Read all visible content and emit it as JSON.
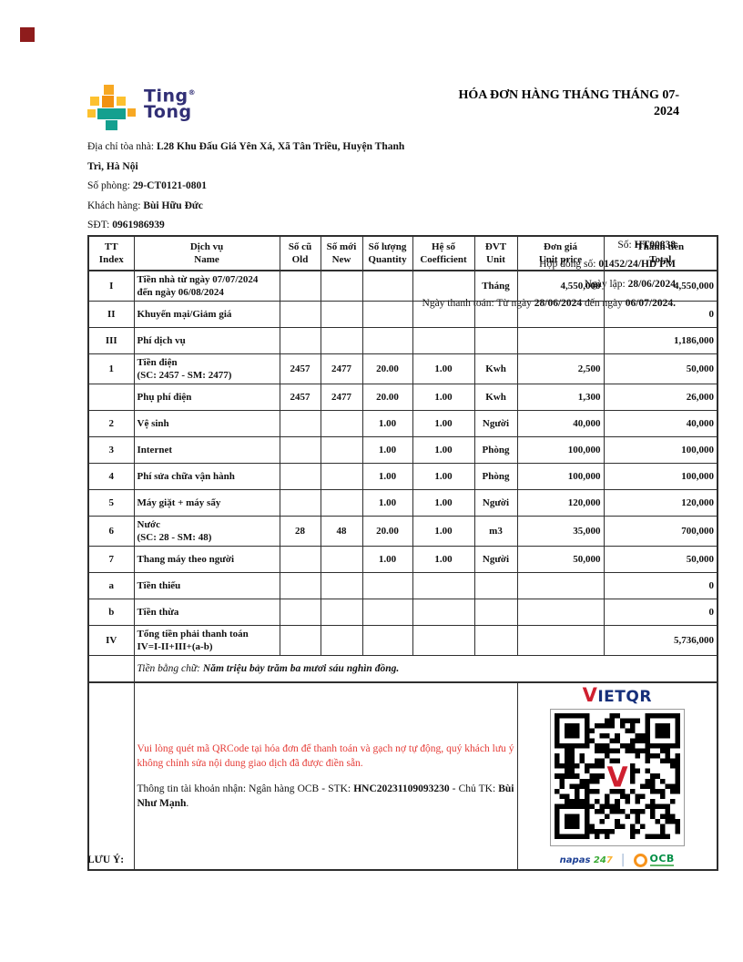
{
  "title": "HÓA ĐƠN HÀNG THÁNG THÁNG 07-2024",
  "logo": {
    "line1": "Ting",
    "line2": "Tong",
    "reg_mark": "®"
  },
  "colors": {
    "corner_mark": "#8e1c1c",
    "brand_navy": "#312f75",
    "brand_teal": "#14a08f",
    "brand_gold": "#f7a823",
    "note_red": "#e53b36",
    "vietqr_red": "#cf2030",
    "vietqr_navy": "#152f7a",
    "napas_navy": "#1c3f94",
    "napas_green": "#3aaa35",
    "napas_yellow": "#f9b233",
    "ocb_green": "#008f45",
    "ocb_orange": "#f7941d"
  },
  "info_left": [
    [
      {
        "t": "Địa chỉ tòa nhà: "
      },
      {
        "t": "L28 Khu Đấu Giá Yên Xá, Xã Tân Triều, Huyện Thanh Trì, Hà Nội",
        "b": true
      }
    ],
    [
      {
        "t": "Số phòng: "
      },
      {
        "t": "29-CT0121-0801",
        "b": true
      }
    ],
    [
      {
        "t": "Khách hàng: "
      },
      {
        "t": "Bùi Hữu Đức",
        "b": true
      }
    ],
    [
      {
        "t": "SĐT: "
      },
      {
        "t": "0961986939",
        "b": true
      }
    ]
  ],
  "info_right": [
    [
      {
        "t": "Số: "
      },
      {
        "t": "HT00838",
        "b": true
      }
    ],
    [
      {
        "t": "Hợp đồng số: "
      },
      {
        "t": "01452/24/HD PM",
        "b": true
      }
    ],
    [
      {
        "t": "Ngày lập: "
      },
      {
        "t": "28/06/2024",
        "b": true
      }
    ],
    [
      {
        "t": "Ngày thanh toán: Từ ngày "
      },
      {
        "t": "28/06/2024",
        "b": true
      },
      {
        "t": " đến ngày "
      },
      {
        "t": "06/07/2024.",
        "b": true
      }
    ]
  ],
  "table": {
    "header": [
      {
        "vi": "TT",
        "en": "Index"
      },
      {
        "vi": "Dịch vụ",
        "en": "Name"
      },
      {
        "vi": "Số cũ",
        "en": "Old"
      },
      {
        "vi": "Số mới",
        "en": "New"
      },
      {
        "vi": "Số lượng",
        "en": "Quantity"
      },
      {
        "vi": "Hệ số",
        "en": "Coefficient"
      },
      {
        "vi": "ĐVT",
        "en": "Unit"
      },
      {
        "vi": "Đơn giá",
        "en": "Unit price"
      },
      {
        "vi": "Thành tiền",
        "en": "Total"
      }
    ],
    "rows": [
      {
        "tt": "I",
        "name": "Tiền nhà từ ngày 07/07/2024",
        "sub": "đến ngày 06/08/2024",
        "old": "",
        "new": "",
        "qty": "",
        "coef": "",
        "unit": "Tháng",
        "price": "4,550,000",
        "total": "4,550,000"
      },
      {
        "tt": "II",
        "name": "Khuyến mại/Giảm giá",
        "sub": "",
        "old": "",
        "new": "",
        "qty": "",
        "coef": "",
        "unit": "",
        "price": "",
        "total": "0"
      },
      {
        "tt": "III",
        "name": "Phí dịch vụ",
        "sub": "",
        "old": "",
        "new": "",
        "qty": "",
        "coef": "",
        "unit": "",
        "price": "",
        "total": "1,186,000"
      },
      {
        "tt": "1",
        "name": "Tiền điện",
        "sub": "(SC: 2457 - SM: 2477)",
        "old": "2457",
        "new": "2477",
        "qty": "20.00",
        "coef": "1.00",
        "unit": "Kwh",
        "price": "2,500",
        "total": "50,000"
      },
      {
        "tt": "",
        "name": "Phụ phí điện",
        "sub": "",
        "old": "2457",
        "new": "2477",
        "qty": "20.00",
        "coef": "1.00",
        "unit": "Kwh",
        "price": "1,300",
        "total": "26,000"
      },
      {
        "tt": "2",
        "name": "Vệ sinh",
        "sub": "",
        "old": "",
        "new": "",
        "qty": "1.00",
        "coef": "1.00",
        "unit": "Người",
        "price": "40,000",
        "total": "40,000"
      },
      {
        "tt": "3",
        "name": "Internet",
        "sub": "",
        "old": "",
        "new": "",
        "qty": "1.00",
        "coef": "1.00",
        "unit": "Phòng",
        "price": "100,000",
        "total": "100,000"
      },
      {
        "tt": "4",
        "name": "Phí sửa chữa vận hành",
        "sub": "",
        "old": "",
        "new": "",
        "qty": "1.00",
        "coef": "1.00",
        "unit": "Phòng",
        "price": "100,000",
        "total": "100,000"
      },
      {
        "tt": "5",
        "name": "Máy giặt + máy sấy",
        "sub": "",
        "old": "",
        "new": "",
        "qty": "1.00",
        "coef": "1.00",
        "unit": "Người",
        "price": "120,000",
        "total": "120,000"
      },
      {
        "tt": "6",
        "name": "Nước",
        "sub": "(SC: 28 - SM: 48)",
        "old": "28",
        "new": "48",
        "qty": "20.00",
        "coef": "1.00",
        "unit": "m3",
        "price": "35,000",
        "total": "700,000"
      },
      {
        "tt": "7",
        "name": "Thang máy theo người",
        "sub": "",
        "old": "",
        "new": "",
        "qty": "1.00",
        "coef": "1.00",
        "unit": "Người",
        "price": "50,000",
        "total": "50,000"
      },
      {
        "tt": "a",
        "name": "Tiền thiếu",
        "sub": "",
        "old": "",
        "new": "",
        "qty": "",
        "coef": "",
        "unit": "",
        "price": "",
        "total": "0"
      },
      {
        "tt": "b",
        "name": "Tiền thừa",
        "sub": "",
        "old": "",
        "new": "",
        "qty": "",
        "coef": "",
        "unit": "",
        "price": "",
        "total": "0"
      },
      {
        "tt": "IV",
        "name": "Tổng tiền phải thanh toán",
        "sub": "IV=I-II+III+(a-b)",
        "old": "",
        "new": "",
        "qty": "",
        "coef": "",
        "unit": "",
        "price": "",
        "total": "5,736,000"
      }
    ],
    "amount_in_words": [
      {
        "t": "Tiền bằng chữ: ",
        "i": true
      },
      {
        "t": "Năm triệu bảy trăm ba mươi sáu nghìn đồng.",
        "b": true,
        "i": true
      }
    ]
  },
  "qr_section": {
    "note_red": "Vui lòng quét mã QRCode tại hóa đơn để thanh toán và gạch nợ tự động, quý khách lưu ý không chỉnh sửa nội dung giao dịch đã được điền sẵn.",
    "account": [
      {
        "t": "Thông tin tài khoản nhận: Ngân hàng OCB - STK: "
      },
      {
        "t": "HNC20231109093230",
        "b": true
      },
      {
        "t": " - Chủ TK: "
      },
      {
        "t": "Bùi Như Mạnh",
        "b": true
      },
      {
        "t": "."
      }
    ],
    "vietqr_v": "V",
    "vietqr_rest": "IETQR",
    "napas_text": "napas",
    "napas_24": "24",
    "napas_7": "7",
    "ocb_text": "OCB"
  },
  "footer_note": "LƯU Ý:"
}
